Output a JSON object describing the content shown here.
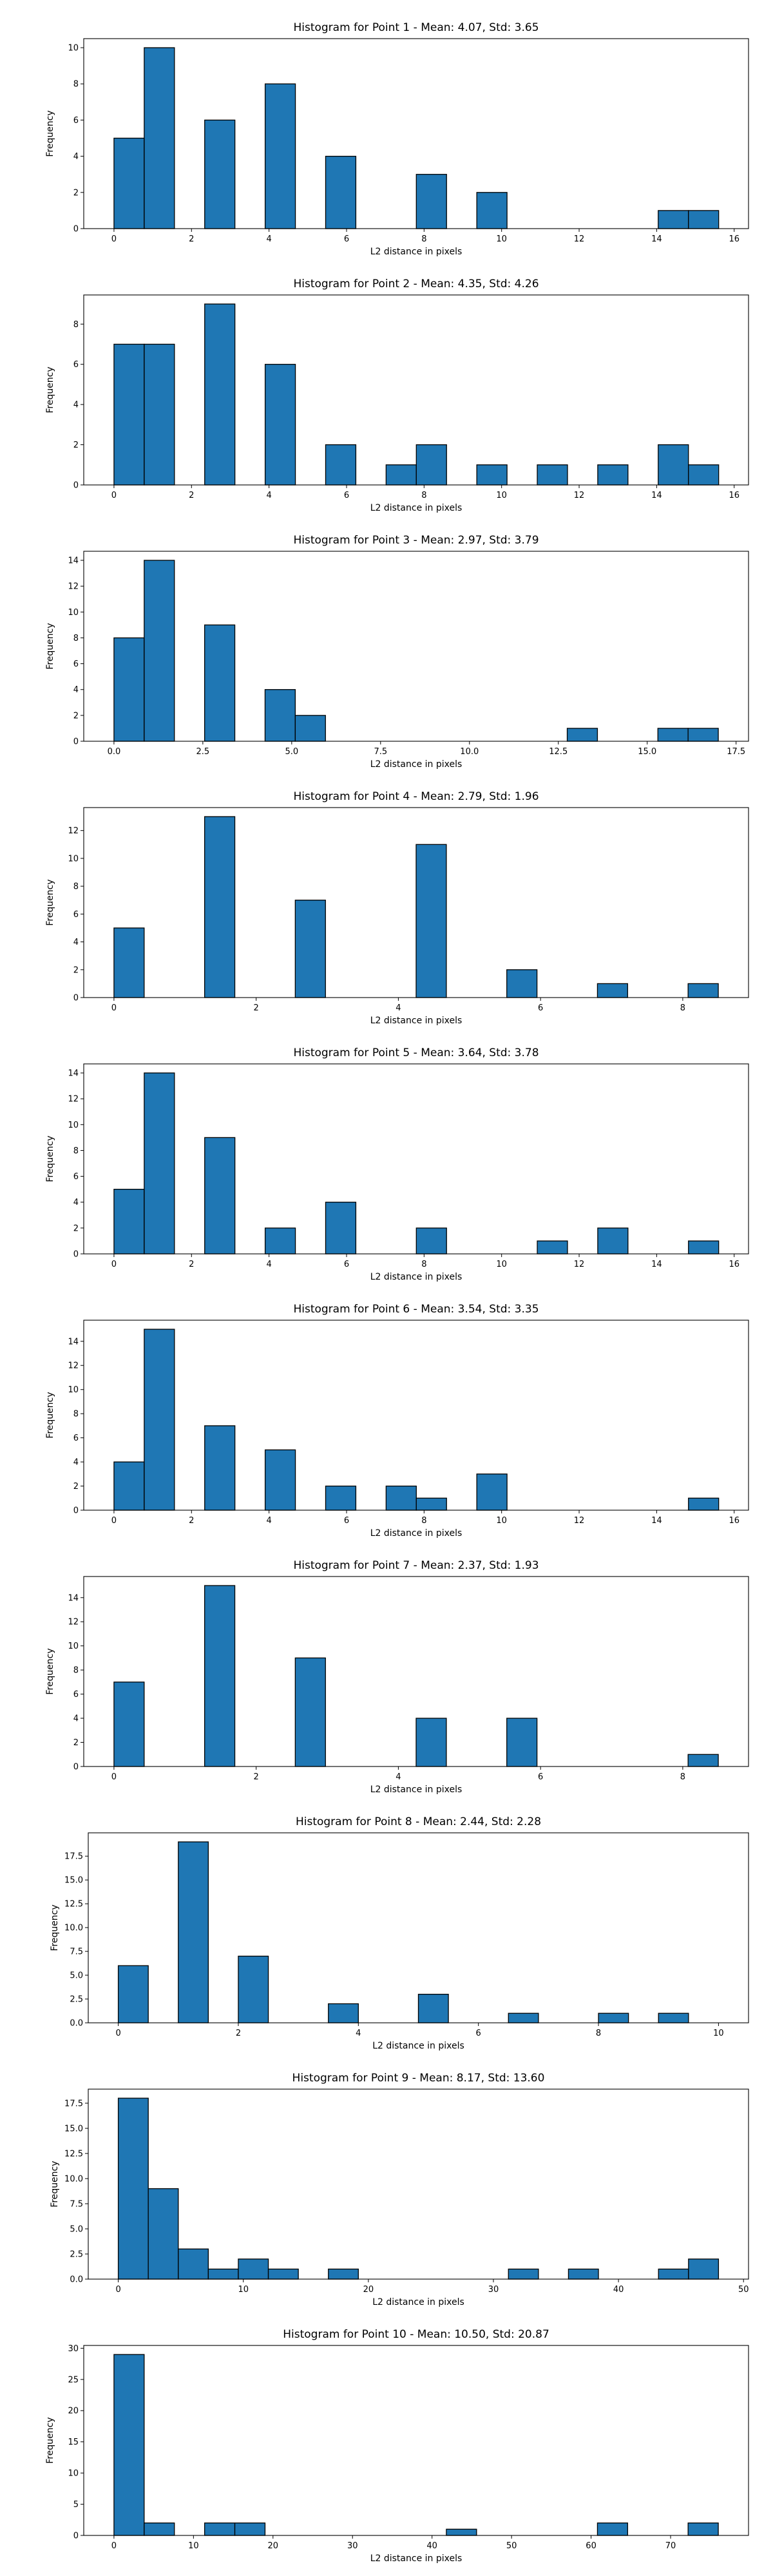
{
  "chart_data": [
    {
      "type": "bar",
      "title": "Histogram for Point 1 - Mean: 4.07, Std: 3.65",
      "xlabel": "L2 distance in pixels",
      "ylabel": "Frequency",
      "xlim": [
        -0.78,
        16.37
      ],
      "ylim": [
        0,
        10.5
      ],
      "xticks": [
        0,
        2,
        4,
        6,
        8,
        10,
        12,
        14,
        16
      ],
      "yticks": [
        0,
        2,
        4,
        6,
        8,
        10
      ],
      "bins": [
        {
          "x0": 0,
          "x1": 0.78,
          "count": 5
        },
        {
          "x0": 0.78,
          "x1": 1.56,
          "count": 10
        },
        {
          "x0": 2.34,
          "x1": 3.12,
          "count": 6
        },
        {
          "x0": 3.9,
          "x1": 4.68,
          "count": 8
        },
        {
          "x0": 5.46,
          "x1": 6.24,
          "count": 4
        },
        {
          "x0": 7.8,
          "x1": 8.58,
          "count": 3
        },
        {
          "x0": 9.36,
          "x1": 10.14,
          "count": 2
        },
        {
          "x0": 14.04,
          "x1": 14.82,
          "count": 1
        },
        {
          "x0": 14.82,
          "x1": 15.6,
          "count": 1
        }
      ]
    },
    {
      "type": "bar",
      "title": "Histogram for Point 2 - Mean: 4.35, Std: 4.26",
      "xlabel": "L2 distance in pixels",
      "ylabel": "Frequency",
      "xlim": [
        -0.78,
        16.37
      ],
      "ylim": [
        0,
        9.45
      ],
      "xticks": [
        0,
        2,
        4,
        6,
        8,
        10,
        12,
        14,
        16
      ],
      "yticks": [
        0,
        2,
        4,
        6,
        8
      ],
      "bins": [
        {
          "x0": 0,
          "x1": 0.78,
          "count": 7
        },
        {
          "x0": 0.78,
          "x1": 1.56,
          "count": 7
        },
        {
          "x0": 2.34,
          "x1": 3.12,
          "count": 9
        },
        {
          "x0": 3.9,
          "x1": 4.68,
          "count": 6
        },
        {
          "x0": 5.46,
          "x1": 6.24,
          "count": 2
        },
        {
          "x0": 7.02,
          "x1": 7.8,
          "count": 1
        },
        {
          "x0": 7.8,
          "x1": 8.58,
          "count": 2
        },
        {
          "x0": 9.36,
          "x1": 10.14,
          "count": 1
        },
        {
          "x0": 10.92,
          "x1": 11.7,
          "count": 1
        },
        {
          "x0": 12.48,
          "x1": 13.26,
          "count": 1
        },
        {
          "x0": 14.04,
          "x1": 14.82,
          "count": 2
        },
        {
          "x0": 14.82,
          "x1": 15.6,
          "count": 1
        }
      ]
    },
    {
      "type": "bar",
      "title": "Histogram for Point 3 - Mean: 2.97, Std: 3.79",
      "xlabel": "L2 distance in pixels",
      "ylabel": "Frequency",
      "xlim": [
        -0.85,
        17.85
      ],
      "ylim": [
        0,
        14.7
      ],
      "xticks": [
        0.0,
        2.5,
        5.0,
        7.5,
        10.0,
        12.5,
        15.0,
        17.5
      ],
      "xticklabels": [
        "0.0",
        "2.5",
        "5.0",
        "7.5",
        "10.0",
        "12.5",
        "15.0",
        "17.5"
      ],
      "yticks": [
        0,
        2,
        4,
        6,
        8,
        10,
        12,
        14
      ],
      "bins": [
        {
          "x0": 0,
          "x1": 0.85,
          "count": 8
        },
        {
          "x0": 0.85,
          "x1": 1.7,
          "count": 14
        },
        {
          "x0": 2.55,
          "x1": 3.4,
          "count": 9
        },
        {
          "x0": 4.25,
          "x1": 5.1,
          "count": 4
        },
        {
          "x0": 5.1,
          "x1": 5.95,
          "count": 2
        },
        {
          "x0": 12.75,
          "x1": 13.6,
          "count": 1
        },
        {
          "x0": 15.3,
          "x1": 16.15,
          "count": 1
        },
        {
          "x0": 16.15,
          "x1": 17.0,
          "count": 1
        }
      ]
    },
    {
      "type": "bar",
      "title": "Histogram for Point 4 - Mean: 2.79, Std: 1.96",
      "xlabel": "L2 distance in pixels",
      "ylabel": "Frequency",
      "xlim": [
        -0.425,
        8.925
      ],
      "ylim": [
        0,
        13.65
      ],
      "xticks": [
        0,
        2,
        4,
        6,
        8
      ],
      "yticks": [
        0,
        2,
        4,
        6,
        8,
        10,
        12
      ],
      "bins": [
        {
          "x0": 0,
          "x1": 0.425,
          "count": 5
        },
        {
          "x0": 1.275,
          "x1": 1.7,
          "count": 13
        },
        {
          "x0": 2.55,
          "x1": 2.975,
          "count": 7
        },
        {
          "x0": 4.25,
          "x1": 4.675,
          "count": 11
        },
        {
          "x0": 5.525,
          "x1": 5.95,
          "count": 2
        },
        {
          "x0": 6.8,
          "x1": 7.225,
          "count": 1
        },
        {
          "x0": 8.075,
          "x1": 8.5,
          "count": 1
        }
      ]
    },
    {
      "type": "bar",
      "title": "Histogram for Point 5 - Mean: 3.64, Std: 3.78",
      "xlabel": "L2 distance in pixels",
      "ylabel": "Frequency",
      "xlim": [
        -0.78,
        16.37
      ],
      "ylim": [
        0,
        14.7
      ],
      "xticks": [
        0,
        2,
        4,
        6,
        8,
        10,
        12,
        14,
        16
      ],
      "yticks": [
        0,
        2,
        4,
        6,
        8,
        10,
        12,
        14
      ],
      "bins": [
        {
          "x0": 0,
          "x1": 0.78,
          "count": 5
        },
        {
          "x0": 0.78,
          "x1": 1.56,
          "count": 14
        },
        {
          "x0": 2.34,
          "x1": 3.12,
          "count": 9
        },
        {
          "x0": 3.9,
          "x1": 4.68,
          "count": 2
        },
        {
          "x0": 5.46,
          "x1": 6.24,
          "count": 4
        },
        {
          "x0": 7.8,
          "x1": 8.58,
          "count": 2
        },
        {
          "x0": 10.92,
          "x1": 11.7,
          "count": 1
        },
        {
          "x0": 12.48,
          "x1": 13.26,
          "count": 2
        },
        {
          "x0": 14.82,
          "x1": 15.6,
          "count": 1
        }
      ]
    },
    {
      "type": "bar",
      "title": "Histogram for Point 6 - Mean: 3.54, Std: 3.35",
      "xlabel": "L2 distance in pixels",
      "ylabel": "Frequency",
      "xlim": [
        -0.78,
        16.37
      ],
      "ylim": [
        0,
        15.75
      ],
      "xticks": [
        0,
        2,
        4,
        6,
        8,
        10,
        12,
        14,
        16
      ],
      "yticks": [
        0,
        2,
        4,
        6,
        8,
        10,
        12,
        14
      ],
      "bins": [
        {
          "x0": 0,
          "x1": 0.78,
          "count": 4
        },
        {
          "x0": 0.78,
          "x1": 1.56,
          "count": 15
        },
        {
          "x0": 2.34,
          "x1": 3.12,
          "count": 7
        },
        {
          "x0": 3.9,
          "x1": 4.68,
          "count": 5
        },
        {
          "x0": 5.46,
          "x1": 6.24,
          "count": 2
        },
        {
          "x0": 7.02,
          "x1": 7.8,
          "count": 2
        },
        {
          "x0": 7.8,
          "x1": 8.58,
          "count": 1
        },
        {
          "x0": 9.36,
          "x1": 10.14,
          "count": 3
        },
        {
          "x0": 14.82,
          "x1": 15.6,
          "count": 1
        }
      ]
    },
    {
      "type": "bar",
      "title": "Histogram for Point 7 - Mean: 2.37, Std: 1.93",
      "xlabel": "L2 distance in pixels",
      "ylabel": "Frequency",
      "xlim": [
        -0.425,
        8.925
      ],
      "ylim": [
        0,
        15.75
      ],
      "xticks": [
        0,
        2,
        4,
        6,
        8
      ],
      "yticks": [
        0,
        2,
        4,
        6,
        8,
        10,
        12,
        14
      ],
      "bins": [
        {
          "x0": 0,
          "x1": 0.425,
          "count": 7
        },
        {
          "x0": 1.275,
          "x1": 1.7,
          "count": 15
        },
        {
          "x0": 2.55,
          "x1": 2.975,
          "count": 9
        },
        {
          "x0": 4.25,
          "x1": 4.675,
          "count": 4
        },
        {
          "x0": 5.525,
          "x1": 5.95,
          "count": 4
        },
        {
          "x0": 8.075,
          "x1": 8.5,
          "count": 1
        }
      ]
    },
    {
      "type": "bar",
      "title": "Histogram for Point 8 - Mean: 2.44, Std: 2.28",
      "xlabel": "L2 distance in pixels",
      "ylabel": "Frequency",
      "xlim": [
        -0.5,
        10.5
      ],
      "ylim": [
        0,
        19.95
      ],
      "xticks": [
        0,
        2,
        4,
        6,
        8,
        10
      ],
      "yticks": [
        0.0,
        2.5,
        5.0,
        7.5,
        10.0,
        12.5,
        15.0,
        17.5
      ],
      "yticklabels": [
        "0.0",
        "2.5",
        "5.0",
        "7.5",
        "10.0",
        "12.5",
        "15.0",
        "17.5"
      ],
      "bins": [
        {
          "x0": 0,
          "x1": 0.5,
          "count": 6
        },
        {
          "x0": 1.0,
          "x1": 1.5,
          "count": 19
        },
        {
          "x0": 2.0,
          "x1": 2.5,
          "count": 7
        },
        {
          "x0": 3.5,
          "x1": 4.0,
          "count": 2
        },
        {
          "x0": 5.0,
          "x1": 5.5,
          "count": 3
        },
        {
          "x0": 6.5,
          "x1": 7.0,
          "count": 1
        },
        {
          "x0": 8.0,
          "x1": 8.5,
          "count": 1
        },
        {
          "x0": 9.0,
          "x1": 9.5,
          "count": 1
        }
      ]
    },
    {
      "type": "bar",
      "title": "Histogram for Point 9 - Mean: 8.17, Std: 13.60",
      "xlabel": "L2 distance in pixels",
      "ylabel": "Frequency",
      "xlim": [
        -2.4,
        50.4
      ],
      "ylim": [
        0,
        18.9
      ],
      "xticks": [
        0,
        10,
        20,
        30,
        40,
        50
      ],
      "yticks": [
        0.0,
        2.5,
        5.0,
        7.5,
        10.0,
        12.5,
        15.0,
        17.5
      ],
      "yticklabels": [
        "0.0",
        "2.5",
        "5.0",
        "7.5",
        "10.0",
        "12.5",
        "15.0",
        "17.5"
      ],
      "bins": [
        {
          "x0": 0,
          "x1": 2.4,
          "count": 18
        },
        {
          "x0": 2.4,
          "x1": 4.8,
          "count": 9
        },
        {
          "x0": 4.8,
          "x1": 7.2,
          "count": 3
        },
        {
          "x0": 7.2,
          "x1": 9.6,
          "count": 1
        },
        {
          "x0": 9.6,
          "x1": 12.0,
          "count": 2
        },
        {
          "x0": 12.0,
          "x1": 14.4,
          "count": 1
        },
        {
          "x0": 16.8,
          "x1": 19.2,
          "count": 1
        },
        {
          "x0": 31.2,
          "x1": 33.6,
          "count": 1
        },
        {
          "x0": 36.0,
          "x1": 38.4,
          "count": 1
        },
        {
          "x0": 43.2,
          "x1": 45.6,
          "count": 1
        },
        {
          "x0": 45.6,
          "x1": 48.0,
          "count": 2
        }
      ]
    },
    {
      "type": "bar",
      "title": "Histogram for Point 10 - Mean: 10.50, Std: 20.87",
      "xlabel": "L2 distance in pixels",
      "ylabel": "Frequency",
      "xlim": [
        -3.8,
        79.8
      ],
      "ylim": [
        0,
        30.45
      ],
      "xticks": [
        0,
        10,
        20,
        30,
        40,
        50,
        60,
        70
      ],
      "yticks": [
        0,
        5,
        10,
        15,
        20,
        25,
        30
      ],
      "bins": [
        {
          "x0": 0,
          "x1": 3.8,
          "count": 29
        },
        {
          "x0": 3.8,
          "x1": 7.6,
          "count": 2
        },
        {
          "x0": 11.4,
          "x1": 15.2,
          "count": 2
        },
        {
          "x0": 15.2,
          "x1": 19.0,
          "count": 2
        },
        {
          "x0": 41.8,
          "x1": 45.6,
          "count": 1
        },
        {
          "x0": 60.8,
          "x1": 64.6,
          "count": 2
        },
        {
          "x0": 72.2,
          "x1": 76.0,
          "count": 2
        }
      ]
    }
  ]
}
